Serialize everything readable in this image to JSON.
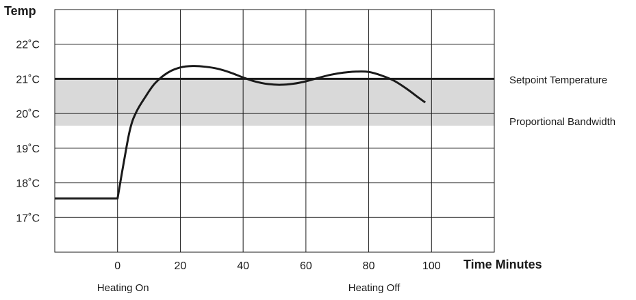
{
  "chart_data": {
    "type": "line",
    "ylabel": "Temp",
    "xlabel": "Time Minutes",
    "xlim": [
      -20,
      120
    ],
    "ylim": [
      16,
      23
    ],
    "x_ticks": [
      0,
      20,
      40,
      60,
      80,
      100
    ],
    "y_ticks": [
      {
        "value": 22,
        "label": "22˚C"
      },
      {
        "value": 21,
        "label": "21˚C"
      },
      {
        "value": 20,
        "label": "20˚C"
      },
      {
        "value": 19,
        "label": "19˚C"
      },
      {
        "value": 18,
        "label": "18˚C"
      },
      {
        "value": 17,
        "label": "17˚C"
      }
    ],
    "grid": true,
    "setpoint": {
      "value": 21.0,
      "label": "Setpoint Temperature"
    },
    "band": {
      "from": 19.65,
      "to": 21.0,
      "label": "Proportional Bandwidth"
    },
    "series": [
      {
        "x": [
          -20,
          0,
          2,
          4,
          6,
          9,
          12,
          16,
          20,
          24,
          28,
          32,
          36,
          40,
          44,
          48,
          52,
          56,
          60,
          64,
          68,
          72,
          76,
          80,
          84,
          88,
          92,
          96,
          98
        ],
        "y": [
          17.55,
          17.55,
          18.6,
          19.55,
          20.05,
          20.5,
          20.88,
          21.18,
          21.33,
          21.37,
          21.35,
          21.29,
          21.18,
          21.04,
          20.92,
          20.85,
          20.83,
          20.86,
          20.93,
          21.03,
          21.12,
          21.18,
          21.21,
          21.2,
          21.1,
          20.95,
          20.72,
          20.45,
          20.32
        ]
      }
    ],
    "annotations": [
      {
        "x": 0,
        "text": "Heating On"
      },
      {
        "x": 80,
        "text": "Heating Off"
      }
    ],
    "colors": {
      "line": "#1a1a1a",
      "band": "#d9d9d9",
      "grid": "#1a1a1a"
    }
  }
}
